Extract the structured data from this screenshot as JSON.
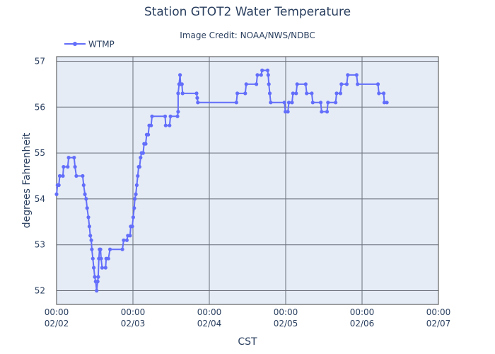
{
  "chart_data": {
    "type": "line",
    "title": "Station GTOT2 Water Temperature",
    "subtitle": "Image Credit: NOAA/NWS/NDBC",
    "xlabel": "CST",
    "ylabel": "degrees Fahrenheit",
    "x_ticks": [
      {
        "time": "00:00",
        "date": "02/02",
        "hours": 0
      },
      {
        "time": "00:00",
        "date": "02/03",
        "hours": 24
      },
      {
        "time": "00:00",
        "date": "02/04",
        "hours": 48
      },
      {
        "time": "00:00",
        "date": "02/05",
        "hours": 72
      },
      {
        "time": "00:00",
        "date": "02/06",
        "hours": 96
      },
      {
        "time": "00:00",
        "date": "02/07",
        "hours": 120
      }
    ],
    "xlim_hours": [
      0,
      120
    ],
    "y_ticks": [
      "52",
      "53",
      "54",
      "55",
      "56",
      "57"
    ],
    "ylim": [
      51.7,
      57.1
    ],
    "grid": true,
    "legend_position": "top-left",
    "series": [
      {
        "name": "WTMP",
        "color": "#636efa",
        "points": [
          [
            0.0,
            54.1
          ],
          [
            0.3,
            54.3
          ],
          [
            0.7,
            54.3
          ],
          [
            1.0,
            54.5
          ],
          [
            2.0,
            54.5
          ],
          [
            2.2,
            54.7
          ],
          [
            3.5,
            54.7
          ],
          [
            3.8,
            54.9
          ],
          [
            5.5,
            54.9
          ],
          [
            5.8,
            54.7
          ],
          [
            6.2,
            54.5
          ],
          [
            8.2,
            54.5
          ],
          [
            8.5,
            54.3
          ],
          [
            8.9,
            54.1
          ],
          [
            9.3,
            54.0
          ],
          [
            9.6,
            53.8
          ],
          [
            10.0,
            53.6
          ],
          [
            10.3,
            53.4
          ],
          [
            10.6,
            53.2
          ],
          [
            10.9,
            53.1
          ],
          [
            11.1,
            52.9
          ],
          [
            11.4,
            52.7
          ],
          [
            11.7,
            52.5
          ],
          [
            12.0,
            52.3
          ],
          [
            12.3,
            52.2
          ],
          [
            12.6,
            52.0
          ],
          [
            12.9,
            52.2
          ],
          [
            13.1,
            52.3
          ],
          [
            13.3,
            52.7
          ],
          [
            13.5,
            52.9
          ],
          [
            13.8,
            52.9
          ],
          [
            14.0,
            52.7
          ],
          [
            14.3,
            52.5
          ],
          [
            15.4,
            52.5
          ],
          [
            15.6,
            52.7
          ],
          [
            16.3,
            52.7
          ],
          [
            16.8,
            52.9
          ],
          [
            20.7,
            52.9
          ],
          [
            21.1,
            53.1
          ],
          [
            22.1,
            53.1
          ],
          [
            22.4,
            53.2
          ],
          [
            23.1,
            53.2
          ],
          [
            23.3,
            53.4
          ],
          [
            23.8,
            53.4
          ],
          [
            24.1,
            53.6
          ],
          [
            24.4,
            53.8
          ],
          [
            24.6,
            54.0
          ],
          [
            24.9,
            54.1
          ],
          [
            25.2,
            54.3
          ],
          [
            25.5,
            54.5
          ],
          [
            25.8,
            54.7
          ],
          [
            26.1,
            54.7
          ],
          [
            26.4,
            54.9
          ],
          [
            26.7,
            55.0
          ],
          [
            27.2,
            55.0
          ],
          [
            27.5,
            55.2
          ],
          [
            28.0,
            55.2
          ],
          [
            28.3,
            55.4
          ],
          [
            28.8,
            55.4
          ],
          [
            29.1,
            55.6
          ],
          [
            29.7,
            55.6
          ],
          [
            30.0,
            55.8
          ],
          [
            34.1,
            55.8
          ],
          [
            34.3,
            55.6
          ],
          [
            35.5,
            55.6
          ],
          [
            35.8,
            55.8
          ],
          [
            38.0,
            55.8
          ],
          [
            38.2,
            55.9
          ],
          [
            38.2,
            56.3
          ],
          [
            38.5,
            56.5
          ],
          [
            38.8,
            56.7
          ],
          [
            39.0,
            56.5
          ],
          [
            39.4,
            56.5
          ],
          [
            39.6,
            56.3
          ],
          [
            44.0,
            56.3
          ],
          [
            44.2,
            56.2
          ],
          [
            44.4,
            56.1
          ],
          [
            56.5,
            56.1
          ],
          [
            56.8,
            56.3
          ],
          [
            59.3,
            56.3
          ],
          [
            59.6,
            56.5
          ],
          [
            62.8,
            56.5
          ],
          [
            63.1,
            56.7
          ],
          [
            64.3,
            56.7
          ],
          [
            64.6,
            56.8
          ],
          [
            66.3,
            56.8
          ],
          [
            66.5,
            56.7
          ],
          [
            66.7,
            56.5
          ],
          [
            67.0,
            56.3
          ],
          [
            67.3,
            56.1
          ],
          [
            71.6,
            56.1
          ],
          [
            71.9,
            55.9
          ],
          [
            72.7,
            55.9
          ],
          [
            73.0,
            56.1
          ],
          [
            74.0,
            56.1
          ],
          [
            74.3,
            56.3
          ],
          [
            75.3,
            56.3
          ],
          [
            75.6,
            56.5
          ],
          [
            78.3,
            56.5
          ],
          [
            78.6,
            56.3
          ],
          [
            80.2,
            56.3
          ],
          [
            80.5,
            56.1
          ],
          [
            83.0,
            56.1
          ],
          [
            83.3,
            55.9
          ],
          [
            85.0,
            55.9
          ],
          [
            85.3,
            56.1
          ],
          [
            87.7,
            56.1
          ],
          [
            88.0,
            56.3
          ],
          [
            89.2,
            56.3
          ],
          [
            89.5,
            56.5
          ],
          [
            91.2,
            56.5
          ],
          [
            91.5,
            56.7
          ],
          [
            94.3,
            56.7
          ],
          [
            94.6,
            56.5
          ],
          [
            101.0,
            56.5
          ],
          [
            101.3,
            56.3
          ],
          [
            102.8,
            56.3
          ],
          [
            103.0,
            56.1
          ],
          [
            103.8,
            56.1
          ]
        ]
      }
    ]
  }
}
